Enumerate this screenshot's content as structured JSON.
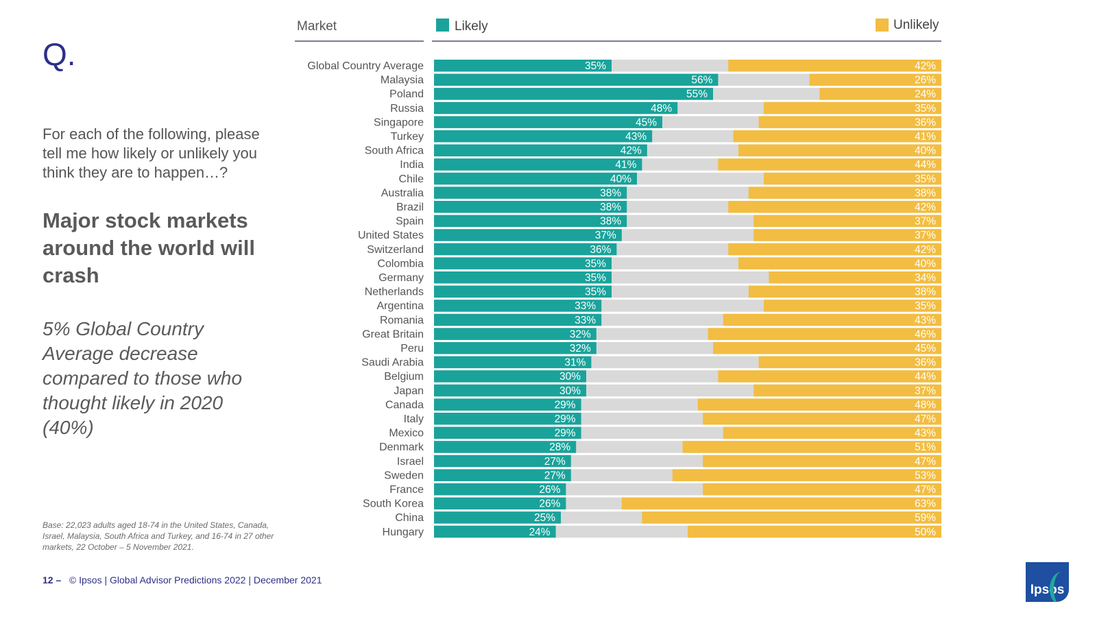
{
  "slide": {
    "q_label": "Q.",
    "question": "For each of the following, please tell me how likely or unlikely you think they are to happen…?",
    "headline": "Major stock markets around the world will crash",
    "note": "5% Global Country Average decrease compared to those who thought likely in 2020 (40%)",
    "base": "Base: 22,023 adults aged 18-74 in the United States, Canada, Israel, Malaysia, South Africa and Turkey, and 16-74 in 27 other markets, 22 October – 5 November 2021.",
    "page_number": "12 –",
    "footer_text": "© Ipsos | Global Advisor Predictions 2022 | December 2021",
    "logo_text": "Ipsos"
  },
  "chart_data": {
    "type": "bar",
    "orientation": "horizontal",
    "stacked": true,
    "title": "",
    "xlabel": "",
    "ylabel": "",
    "category_header": "Market",
    "xlim": [
      0,
      100
    ],
    "grid": false,
    "legend": "top",
    "colors": {
      "likely": "#1aa39b",
      "middle": "#d9d9d9",
      "unlikely": "#f2bd42",
      "axis": "#2d2f55"
    },
    "categories": [
      "Global Country Average",
      "Malaysia",
      "Poland",
      "Russia",
      "Singapore",
      "Turkey",
      "South Africa",
      "India",
      "Chile",
      "Australia",
      "Brazil",
      "Spain",
      "United States",
      "Switzerland",
      "Colombia",
      "Germany",
      "Netherlands",
      "Argentina",
      "Romania",
      "Great Britain",
      "Peru",
      "Saudi Arabia",
      "Belgium",
      "Japan",
      "Canada",
      "Italy",
      "Mexico",
      "Denmark",
      "Israel",
      "Sweden",
      "France",
      "South Korea",
      "China",
      "Hungary"
    ],
    "series": [
      {
        "name": "Likely",
        "values": [
          35,
          56,
          55,
          48,
          45,
          43,
          42,
          41,
          40,
          38,
          38,
          38,
          37,
          36,
          35,
          35,
          35,
          33,
          33,
          32,
          32,
          31,
          30,
          30,
          29,
          29,
          29,
          28,
          27,
          27,
          26,
          26,
          25,
          24
        ],
        "labels": [
          "35%",
          "56%",
          "55%",
          "48%",
          "45%",
          "43%",
          "42%",
          "41%",
          "40%",
          "38%",
          "38%",
          "38%",
          "37%",
          "36%",
          "35%",
          "35%",
          "35%",
          "33%",
          "33%",
          "32%",
          "32%",
          "31%",
          "30%",
          "30%",
          "29%",
          "29%",
          "29%",
          "28%",
          "27%",
          "27%",
          "26%",
          "26%",
          "25%",
          "24%"
        ]
      },
      {
        "name": "Unlikely",
        "values": [
          42,
          26,
          24,
          35,
          36,
          41,
          40,
          44,
          35,
          38,
          42,
          37,
          37,
          42,
          40,
          34,
          38,
          35,
          43,
          46,
          45,
          36,
          44,
          37,
          48,
          47,
          43,
          51,
          47,
          53,
          47,
          63,
          59,
          50
        ],
        "labels": [
          "42%",
          "26%",
          "24%",
          "35%",
          "36%",
          "41%",
          "40%",
          "44%",
          "35%",
          "38%",
          "42%",
          "37%",
          "37%",
          "42%",
          "40%",
          "34%",
          "38%",
          "35%",
          "43%",
          "46%",
          "45%",
          "36%",
          "44%",
          "37%",
          "48%",
          "47%",
          "43%",
          "51%",
          "47%",
          "53%",
          "47%",
          "63%",
          "59%",
          "50%"
        ]
      }
    ]
  }
}
